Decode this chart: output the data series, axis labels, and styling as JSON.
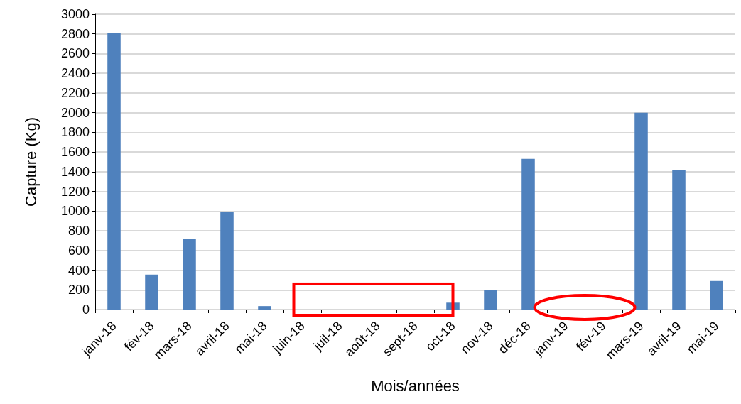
{
  "chart_data": {
    "type": "bar",
    "xlabel": "Mois/années",
    "ylabel": "Capture (Kg)",
    "categories": [
      "janv-18",
      "fév-18",
      "mars-18",
      "avril-18",
      "mai-18",
      "juin-18",
      "juil-18",
      "août-18",
      "sept-18",
      "oct-18",
      "nov-18",
      "déc-18",
      "janv-19",
      "fév-19",
      "mars-19",
      "avril-19",
      "mai-19"
    ],
    "values": [
      2810,
      355,
      715,
      990,
      35,
      0,
      0,
      0,
      0,
      70,
      200,
      1530,
      0,
      0,
      2000,
      1415,
      290
    ],
    "color": "#4f81bd",
    "ylim": [
      0,
      3000
    ],
    "yticks": [
      0,
      200,
      400,
      600,
      800,
      1000,
      1200,
      1400,
      1600,
      1800,
      2000,
      2200,
      2400,
      2600,
      2800,
      3000
    ],
    "grid": "y"
  }
}
